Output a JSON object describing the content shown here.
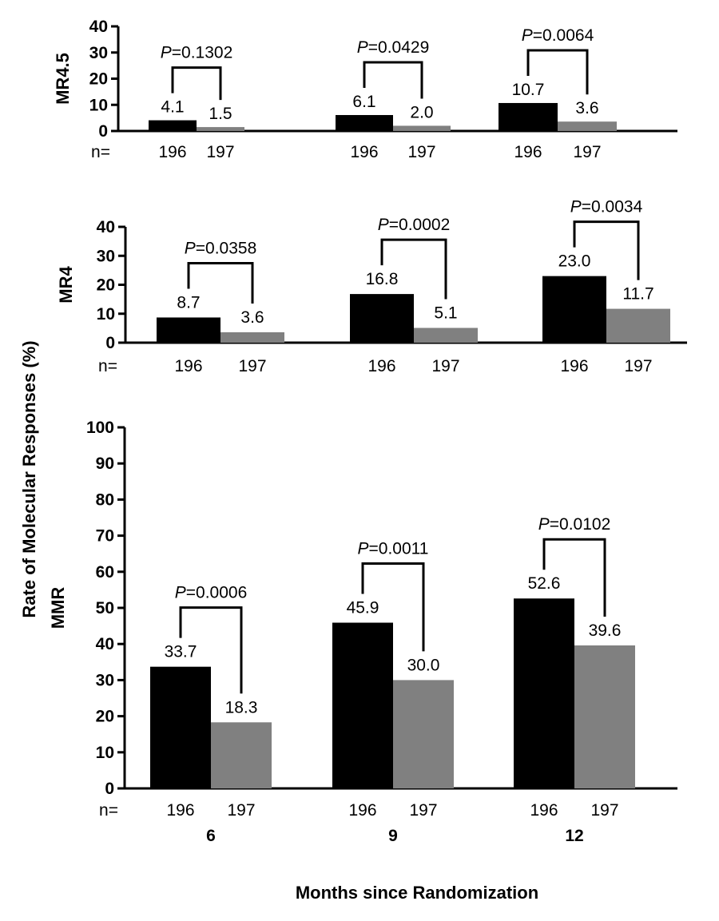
{
  "chart_data": [
    {
      "type": "bar",
      "panel": "MR4.5",
      "ylabel": "MR4.5",
      "ylim": [
        0,
        40
      ],
      "yticks": [
        "0",
        "10",
        "20",
        "30",
        "40"
      ],
      "categories": [
        "6",
        "9",
        "12"
      ],
      "series": [
        {
          "name": "arm1",
          "color": "#000000",
          "values": [
            4.1,
            6.1,
            10.7
          ],
          "labels": [
            "4.1",
            "6.1",
            "10.7"
          ]
        },
        {
          "name": "arm2",
          "color": "#808080",
          "values": [
            1.5,
            2.0,
            3.6
          ],
          "labels": [
            "1.5",
            "2.0",
            "3.6"
          ]
        }
      ],
      "n_label": "n=",
      "n_values": [
        "196",
        "197"
      ],
      "p_values": [
        "0.1302",
        "0.0429",
        "0.0064"
      ]
    },
    {
      "type": "bar",
      "panel": "MR4",
      "ylabel": "MR4",
      "ylim": [
        0,
        40
      ],
      "yticks": [
        "0",
        "10",
        "20",
        "30",
        "40"
      ],
      "categories": [
        "6",
        "9",
        "12"
      ],
      "series": [
        {
          "name": "arm1",
          "color": "#000000",
          "values": [
            8.7,
            16.8,
            23.0
          ],
          "labels": [
            "8.7",
            "16.8",
            "23.0"
          ]
        },
        {
          "name": "arm2",
          "color": "#808080",
          "values": [
            3.6,
            5.1,
            11.7
          ],
          "labels": [
            "3.6",
            "5.1",
            "11.7"
          ]
        }
      ],
      "n_label": "n=",
      "n_values": [
        "196",
        "197"
      ],
      "p_values": [
        "0.0358",
        "0.0002",
        "0.0034"
      ]
    },
    {
      "type": "bar",
      "panel": "MMR",
      "ylabel": "MMR",
      "ylim": [
        0,
        100
      ],
      "yticks": [
        "0",
        "10",
        "20",
        "30",
        "40",
        "50",
        "60",
        "70",
        "80",
        "90",
        "100"
      ],
      "categories": [
        "6",
        "9",
        "12"
      ],
      "series": [
        {
          "name": "arm1",
          "color": "#000000",
          "values": [
            33.7,
            45.9,
            52.6
          ],
          "labels": [
            "33.7",
            "45.9",
            "52.6"
          ]
        },
        {
          "name": "arm2",
          "color": "#808080",
          "values": [
            18.3,
            30.0,
            39.6
          ],
          "labels": [
            "18.3",
            "30.0",
            "39.6"
          ]
        }
      ],
      "n_label": "n=",
      "n_values": [
        "196",
        "197"
      ],
      "p_values": [
        "0.0006",
        "0.0011",
        "0.0102"
      ]
    }
  ],
  "labels": {
    "y_title": "Rate of Molecular Responses (%)",
    "x_title": "Months since Randomization",
    "p_prefix": "P",
    "p_equals": "="
  }
}
